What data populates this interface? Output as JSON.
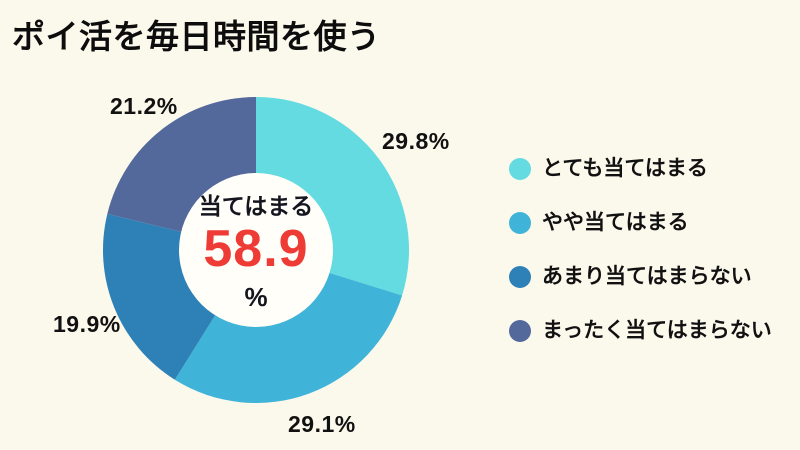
{
  "page": {
    "title": "ポイ活を毎日時間を使う",
    "background": "#FBF8EC",
    "text_color": "#111111"
  },
  "chart_data": {
    "type": "pie",
    "subtype": "donut",
    "title": "ポイ活を毎日時間を使う",
    "categories": [
      "とても当てはまる",
      "やや当てはまる",
      "あまり当てはまらない",
      "まったく当てはまらない"
    ],
    "values": [
      29.8,
      29.1,
      19.9,
      21.2
    ],
    "labels": [
      "29.8%",
      "29.1%",
      "19.9%",
      "21.2%"
    ],
    "colors": [
      "#63DBE1",
      "#3FB4D8",
      "#2E81B6",
      "#54699B"
    ],
    "start_angle": "top",
    "direction": "clockwise",
    "legend_position": "right",
    "hole_color": "#FFFEF8",
    "center_label": {
      "caption": "当てはまる",
      "value": "58.9",
      "unit": "%",
      "value_color": "#EE3B35"
    }
  }
}
